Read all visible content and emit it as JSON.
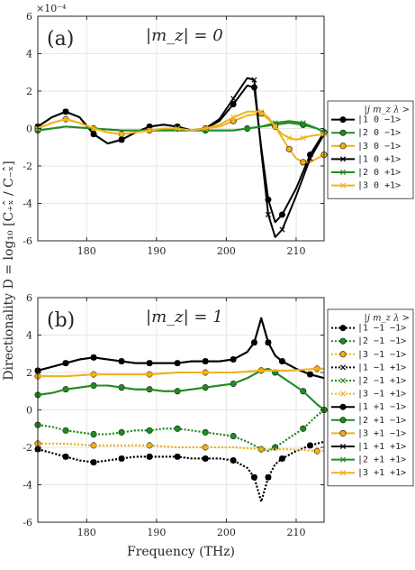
{
  "chart_data": [
    {
      "type": "line",
      "panel_label": "(a)",
      "annotation": "|m_z| = 0",
      "multiplier": "×10⁻⁴",
      "ylim": [
        -6,
        6
      ],
      "xlim": [
        173,
        214
      ],
      "y_ticks": [
        -6,
        -4,
        -2,
        0,
        2,
        4,
        6
      ],
      "y_tick_labels": [
        "-6",
        "-4",
        "-2",
        "0",
        "2",
        "4",
        "6"
      ],
      "x_ticks": [
        180,
        190,
        200,
        210
      ],
      "x_tick_labels": [
        "180",
        "190",
        "200",
        "210"
      ],
      "grid": true,
      "legend_header": "|j  m_z  λ >",
      "legend": [
        "|1  0  −1>",
        "|2  0  −1>",
        "|3  0  −1>",
        "|1  0  +1>",
        "|2  0  +1>",
        "|3  0  +1>"
      ],
      "series": [
        {
          "name": "|1  0  −1>",
          "color": "#000000",
          "marker": "circle",
          "dashed": false,
          "x": [
            173,
            175,
            177,
            179,
            181,
            183,
            185,
            187,
            189,
            191,
            193,
            195,
            197,
            199,
            201,
            203,
            204,
            205,
            206,
            207,
            208,
            210,
            212,
            214
          ],
          "y": [
            0.1,
            0.6,
            0.9,
            0.6,
            -0.3,
            -0.8,
            -0.6,
            -0.2,
            0.1,
            0.2,
            0.1,
            -0.1,
            0.0,
            0.4,
            1.3,
            2.3,
            2.2,
            -1.0,
            -3.8,
            -5.0,
            -4.6,
            -3.2,
            -1.4,
            -0.2
          ]
        },
        {
          "name": "|2  0  −1>",
          "color": "#228B22",
          "marker": "circle",
          "dashed": false,
          "x": [
            173,
            177,
            181,
            185,
            189,
            193,
            197,
            201,
            203,
            205,
            207,
            209,
            211,
            213,
            214
          ],
          "y": [
            -0.1,
            0.1,
            0.0,
            -0.1,
            -0.1,
            -0.1,
            -0.1,
            -0.1,
            0.0,
            0.1,
            0.2,
            0.3,
            0.2,
            0.0,
            -0.2
          ]
        },
        {
          "name": "|3  0  −1>",
          "color": "#F0B21D",
          "marker": "circle",
          "dashed": false,
          "x": [
            173,
            175,
            177,
            179,
            181,
            183,
            185,
            187,
            189,
            191,
            193,
            195,
            197,
            199,
            201,
            203,
            205,
            206,
            207,
            208,
            209,
            210,
            211,
            212,
            214
          ],
          "y": [
            0.0,
            0.3,
            0.5,
            0.3,
            0.0,
            -0.2,
            -0.3,
            -0.2,
            -0.1,
            0.0,
            0.0,
            -0.1,
            0.0,
            0.1,
            0.4,
            0.7,
            0.8,
            0.5,
            0.1,
            -0.5,
            -1.1,
            -1.6,
            -1.8,
            -1.8,
            -1.4
          ]
        },
        {
          "name": "|1  0  +1>",
          "color": "#000000",
          "marker": "cross",
          "dashed": false,
          "x": [
            173,
            175,
            177,
            179,
            181,
            183,
            185,
            187,
            189,
            191,
            193,
            195,
            197,
            199,
            201,
            203,
            204,
            205,
            206,
            207,
            208,
            210,
            212,
            214
          ],
          "y": [
            0.1,
            0.6,
            0.9,
            0.6,
            -0.3,
            -0.8,
            -0.6,
            -0.2,
            0.1,
            0.2,
            0.1,
            -0.1,
            0.0,
            0.5,
            1.6,
            2.7,
            2.6,
            -1.2,
            -4.6,
            -5.8,
            -5.4,
            -3.6,
            -1.6,
            -0.3
          ]
        },
        {
          "name": "|2  0  +1>",
          "color": "#228B22",
          "marker": "cross",
          "dashed": false,
          "x": [
            173,
            177,
            181,
            185,
            189,
            193,
            197,
            201,
            203,
            205,
            207,
            209,
            211,
            213,
            214
          ],
          "y": [
            -0.1,
            0.1,
            0.0,
            -0.1,
            -0.1,
            -0.1,
            -0.1,
            -0.1,
            0.0,
            0.1,
            0.3,
            0.4,
            0.3,
            0.0,
            -0.2
          ]
        },
        {
          "name": "|3  0  +1>",
          "color": "#F0B21D",
          "marker": "cross",
          "dashed": false,
          "x": [
            173,
            175,
            177,
            179,
            181,
            183,
            185,
            187,
            189,
            191,
            193,
            195,
            197,
            199,
            201,
            203,
            205,
            206,
            207,
            208,
            209,
            210,
            211,
            212,
            214
          ],
          "y": [
            0.0,
            0.3,
            0.5,
            0.3,
            0.0,
            -0.2,
            -0.3,
            -0.2,
            -0.1,
            0.0,
            0.0,
            -0.1,
            0.0,
            0.2,
            0.6,
            0.9,
            0.9,
            0.6,
            0.1,
            -0.3,
            -0.5,
            -0.6,
            -0.5,
            -0.4,
            -0.3
          ]
        }
      ]
    },
    {
      "type": "line",
      "panel_label": "(b)",
      "annotation": "|m_z| = 1",
      "ylim": [
        -6,
        6
      ],
      "xlim": [
        173,
        214
      ],
      "y_ticks": [
        -6,
        -4,
        -2,
        0,
        2,
        4,
        6
      ],
      "y_tick_labels": [
        "-6",
        "-4",
        "-2",
        "0",
        "2",
        "4",
        "6"
      ],
      "x_ticks": [
        180,
        190,
        200,
        210
      ],
      "x_tick_labels": [
        "180",
        "190",
        "200",
        "210"
      ],
      "xlabel": "Frequency (THz)",
      "grid": true,
      "legend_header": "|j  m_z  λ >",
      "legend": [
        "|1 −1 −1>",
        "|2 −1 −1>",
        "|3 −1 −1>",
        "|1 −1 +1>",
        "|2 −1 +1>",
        "|3 −1 +1>",
        "|1 +1 −1>",
        "|2 +1 −1>",
        "|3 +1 −1>",
        "|1 +1 +1>",
        "|2 +1 +1>",
        "|3 +1 +1>"
      ],
      "series": [
        {
          "name": "|1 −1 −1>",
          "color": "#000000",
          "marker": "circle",
          "dashed": true,
          "x": [
            173,
            175,
            177,
            179,
            181,
            183,
            185,
            187,
            189,
            191,
            193,
            195,
            197,
            199,
            201,
            203,
            204,
            205,
            206,
            207,
            208,
            210,
            212,
            214
          ],
          "y": [
            -2.1,
            -2.3,
            -2.5,
            -2.7,
            -2.8,
            -2.7,
            -2.6,
            -2.5,
            -2.5,
            -2.5,
            -2.5,
            -2.6,
            -2.6,
            -2.6,
            -2.7,
            -3.1,
            -3.6,
            -4.9,
            -3.6,
            -2.9,
            -2.6,
            -2.2,
            -1.9,
            -1.7
          ]
        },
        {
          "name": "|2 −1 −1>",
          "color": "#228B22",
          "marker": "circle",
          "dashed": true,
          "x": [
            173,
            175,
            177,
            179,
            181,
            183,
            185,
            187,
            189,
            191,
            193,
            195,
            197,
            199,
            201,
            203,
            205,
            206,
            207,
            209,
            211,
            213,
            214
          ],
          "y": [
            -0.8,
            -0.9,
            -1.1,
            -1.2,
            -1.3,
            -1.3,
            -1.2,
            -1.1,
            -1.1,
            -1.0,
            -1.0,
            -1.1,
            -1.2,
            -1.3,
            -1.4,
            -1.7,
            -2.1,
            -2.2,
            -2.0,
            -1.5,
            -1.0,
            -0.3,
            0.0
          ]
        },
        {
          "name": "|3 −1 −1>",
          "color": "#F0B21D",
          "marker": "circle",
          "dashed": true,
          "x": [
            173,
            177,
            181,
            185,
            189,
            193,
            197,
            201,
            205,
            209,
            213,
            214
          ],
          "y": [
            -1.8,
            -1.8,
            -1.9,
            -1.9,
            -1.9,
            -2.0,
            -2.0,
            -2.0,
            -2.1,
            -2.1,
            -2.2,
            -2.2
          ]
        },
        {
          "name": "|1 −1 +1>",
          "color": "#000000",
          "marker": "cross",
          "dashed": true,
          "x": [
            173,
            175,
            177,
            179,
            181,
            183,
            185,
            187,
            189,
            191,
            193,
            195,
            197,
            199,
            201,
            203,
            204,
            205,
            206,
            207,
            208,
            210,
            212,
            214
          ],
          "y": [
            -2.1,
            -2.3,
            -2.5,
            -2.7,
            -2.8,
            -2.7,
            -2.6,
            -2.5,
            -2.5,
            -2.5,
            -2.5,
            -2.6,
            -2.6,
            -2.6,
            -2.7,
            -3.1,
            -3.6,
            -4.9,
            -3.6,
            -2.9,
            -2.6,
            -2.2,
            -1.9,
            -1.7
          ]
        },
        {
          "name": "|2 −1 +1>",
          "color": "#228B22",
          "marker": "cross",
          "dashed": true,
          "x": [
            173,
            175,
            177,
            179,
            181,
            183,
            185,
            187,
            189,
            191,
            193,
            195,
            197,
            199,
            201,
            203,
            205,
            206,
            207,
            209,
            211,
            213,
            214
          ],
          "y": [
            -0.8,
            -0.9,
            -1.1,
            -1.2,
            -1.3,
            -1.3,
            -1.2,
            -1.1,
            -1.1,
            -1.0,
            -1.0,
            -1.1,
            -1.2,
            -1.3,
            -1.4,
            -1.7,
            -2.1,
            -2.2,
            -2.0,
            -1.5,
            -1.0,
            -0.3,
            0.0
          ]
        },
        {
          "name": "|3 −1 +1>",
          "color": "#F0B21D",
          "marker": "cross",
          "dashed": true,
          "x": [
            173,
            177,
            181,
            185,
            189,
            193,
            197,
            201,
            205,
            209,
            213,
            214
          ],
          "y": [
            -1.8,
            -1.8,
            -1.9,
            -1.9,
            -1.9,
            -2.0,
            -2.0,
            -2.0,
            -2.1,
            -2.1,
            -2.2,
            -2.2
          ]
        },
        {
          "name": "|1 +1 −1>",
          "color": "#000000",
          "marker": "circle",
          "dashed": false,
          "x": [
            173,
            175,
            177,
            179,
            181,
            183,
            185,
            187,
            189,
            191,
            193,
            195,
            197,
            199,
            201,
            203,
            204,
            205,
            206,
            207,
            208,
            210,
            212,
            214
          ],
          "y": [
            2.1,
            2.3,
            2.5,
            2.7,
            2.8,
            2.7,
            2.6,
            2.5,
            2.5,
            2.5,
            2.5,
            2.6,
            2.6,
            2.6,
            2.7,
            3.1,
            3.6,
            4.9,
            3.6,
            2.9,
            2.6,
            2.2,
            1.9,
            1.7
          ]
        },
        {
          "name": "|2 +1 −1>",
          "color": "#228B22",
          "marker": "circle",
          "dashed": false,
          "x": [
            173,
            175,
            177,
            179,
            181,
            183,
            185,
            187,
            189,
            191,
            193,
            195,
            197,
            199,
            201,
            203,
            205,
            206,
            207,
            209,
            211,
            213,
            214
          ],
          "y": [
            0.8,
            0.9,
            1.1,
            1.2,
            1.3,
            1.3,
            1.2,
            1.1,
            1.1,
            1.0,
            1.0,
            1.1,
            1.2,
            1.3,
            1.4,
            1.7,
            2.1,
            2.2,
            2.0,
            1.5,
            1.0,
            0.3,
            0.0
          ]
        },
        {
          "name": "|3 +1 −1>",
          "color": "#F0B21D",
          "marker": "circle",
          "dashed": false,
          "x": [
            173,
            177,
            181,
            185,
            189,
            193,
            197,
            201,
            205,
            209,
            213,
            214
          ],
          "y": [
            1.8,
            1.8,
            1.9,
            1.9,
            1.9,
            2.0,
            2.0,
            2.0,
            2.1,
            2.1,
            2.2,
            2.2
          ]
        },
        {
          "name": "|1 +1 +1>",
          "color": "#000000",
          "marker": "cross",
          "dashed": false,
          "x": [
            173,
            175,
            177,
            179,
            181,
            183,
            185,
            187,
            189,
            191,
            193,
            195,
            197,
            199,
            201,
            203,
            204,
            205,
            206,
            207,
            208,
            210,
            212,
            214
          ],
          "y": [
            2.1,
            2.3,
            2.5,
            2.7,
            2.8,
            2.7,
            2.6,
            2.5,
            2.5,
            2.5,
            2.5,
            2.6,
            2.6,
            2.6,
            2.7,
            3.1,
            3.6,
            4.9,
            3.6,
            2.9,
            2.6,
            2.2,
            1.9,
            1.7
          ]
        },
        {
          "name": "|2 +1 +1>",
          "color": "#228B22",
          "marker": "cross",
          "dashed": false,
          "x": [
            173,
            175,
            177,
            179,
            181,
            183,
            185,
            187,
            189,
            191,
            193,
            195,
            197,
            199,
            201,
            203,
            205,
            206,
            207,
            209,
            211,
            213,
            214
          ],
          "y": [
            0.8,
            0.9,
            1.1,
            1.2,
            1.3,
            1.3,
            1.2,
            1.1,
            1.1,
            1.0,
            1.0,
            1.1,
            1.2,
            1.3,
            1.4,
            1.7,
            2.1,
            2.2,
            2.0,
            1.5,
            1.0,
            0.3,
            0.0
          ]
        },
        {
          "name": "|3 +1 +1>",
          "color": "#F0B21D",
          "marker": "cross",
          "dashed": false,
          "x": [
            173,
            177,
            181,
            185,
            189,
            193,
            197,
            201,
            205,
            209,
            213,
            214
          ],
          "y": [
            1.8,
            1.8,
            1.9,
            1.9,
            1.9,
            2.0,
            2.0,
            2.0,
            2.1,
            2.1,
            2.2,
            2.2
          ]
        }
      ]
    }
  ],
  "y_axis_label": "Directionality D = log₁₀ [C₊ₓ̂ / C₋ₓ̂]"
}
